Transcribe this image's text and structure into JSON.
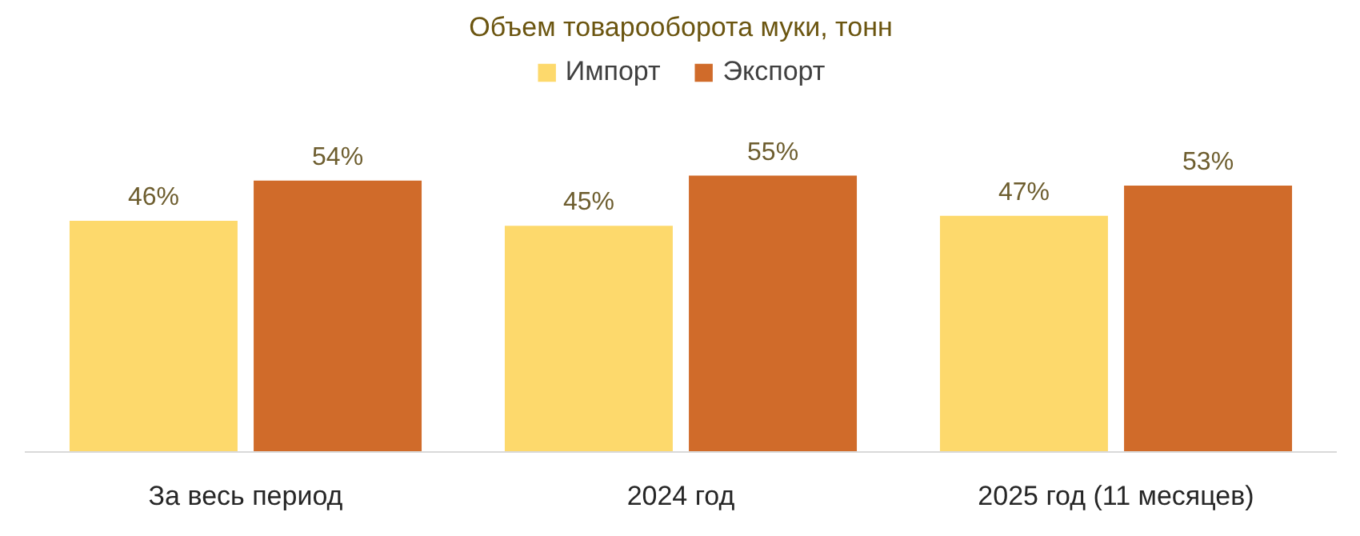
{
  "chart_data": {
    "type": "bar",
    "title": "Объем товарооборота муки, тонн",
    "categories": [
      "За весь период",
      "2024 год",
      "2025 год (11 месяцев)"
    ],
    "legend": "top",
    "series": [
      {
        "name": "Импорт",
        "color": "#fdd96c",
        "values": [
          46,
          45,
          47
        ],
        "value_labels": [
          "46%",
          "45%",
          "47%"
        ]
      },
      {
        "name": "Экспорт",
        "color": "#d06b2a",
        "values": [
          54,
          55,
          53
        ],
        "value_labels": [
          "54%",
          "55%",
          "53%"
        ]
      }
    ]
  }
}
